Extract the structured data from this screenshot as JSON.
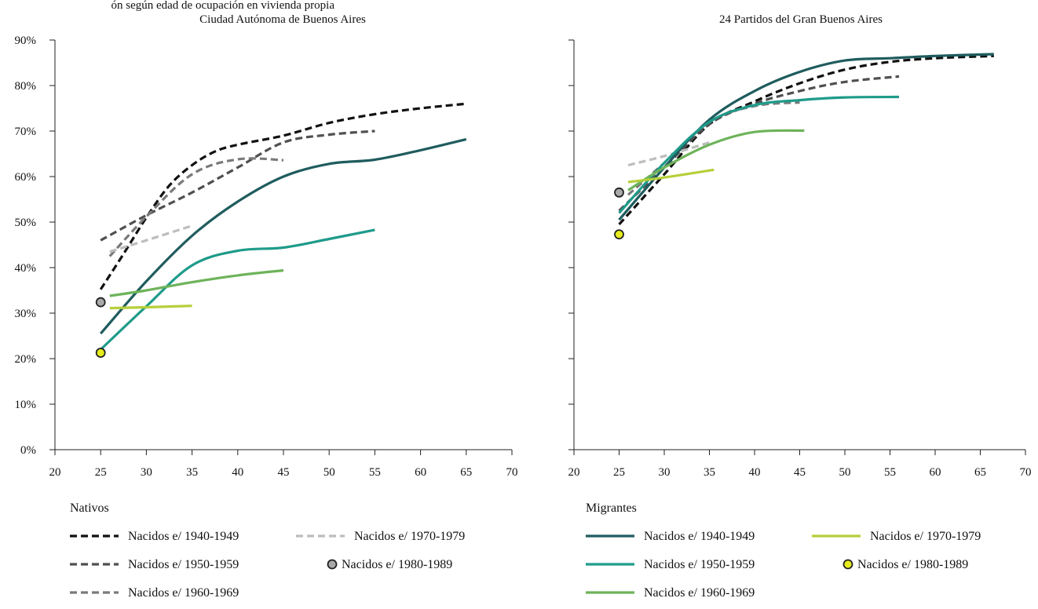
{
  "page_title_partial": "ón según edad de ocupación en vivienda propia",
  "colors": {
    "nacido_1940": "#111111",
    "nacido_1950": "#505050",
    "nacido_1960": "#7a7a7a",
    "nacido_1970": "#bdbdbd",
    "nacido_1980_fill": "#a9a9a9",
    "mig_1940": "#1f5c5e",
    "mig_1950": "#1f9b8a",
    "mig_1960": "#6db35a",
    "mig_1970": "#b6cf3a",
    "mig_1980_fill": "#e6ec1d"
  },
  "chart_data": [
    {
      "type": "line",
      "title": "Ciudad Autónoma de Buenos Aires",
      "xlabel": "",
      "ylabel": "",
      "xlim": [
        20,
        70
      ],
      "ylim": [
        0,
        90
      ],
      "x_ticks": [
        "20",
        "25",
        "30",
        "35",
        "40",
        "45",
        "50",
        "55",
        "60",
        "65",
        "70"
      ],
      "y_ticks": [
        "0%",
        "10%",
        "20%",
        "30%",
        "40%",
        "50%",
        "60%",
        "70%",
        "80%",
        "90%"
      ],
      "grid": false,
      "series": [
        {
          "name": "Nacidos e/ 1940-1949",
          "group": "Nativos",
          "color_key": "nacido_1940",
          "dash": true,
          "points": [
            [
              25,
              35.2
            ],
            [
              27.5,
              43
            ],
            [
              30,
              51
            ],
            [
              32.5,
              58
            ],
            [
              35,
              62.5
            ],
            [
              37.5,
              65.5
            ],
            [
              40,
              67
            ],
            [
              45,
              69
            ],
            [
              50,
              71.8
            ],
            [
              55,
              73.7
            ],
            [
              60,
              75
            ],
            [
              65,
              76
            ]
          ]
        },
        {
          "name": "Nacidos e/ 1950-1959",
          "group": "Nativos",
          "color_key": "nacido_1950",
          "dash": true,
          "points": [
            [
              25,
              46
            ],
            [
              30,
              51.5
            ],
            [
              35,
              56.5
            ],
            [
              40,
              62
            ],
            [
              45,
              67.5
            ],
            [
              50,
              69.2
            ],
            [
              55,
              70
            ]
          ]
        },
        {
          "name": "Nacidos e/ 1960-1969",
          "group": "Nativos",
          "color_key": "nacido_1960",
          "dash": true,
          "points": [
            [
              26,
              42.5
            ],
            [
              30,
              51.2
            ],
            [
              35,
              60.5
            ],
            [
              40,
              63.8
            ],
            [
              45,
              63.6
            ]
          ]
        },
        {
          "name": "Nacidos e/ 1970-1979",
          "group": "Nativos",
          "color_key": "nacido_1970",
          "dash": true,
          "points": [
            [
              26,
              43.5
            ],
            [
              30,
              46
            ],
            [
              35,
              49.2
            ]
          ]
        },
        {
          "name": "Nacidos e/ 1980-1989",
          "group": "Nativos",
          "color_key": "nacido_1980_fill",
          "marker": true,
          "points": [
            [
              25,
              32.4
            ]
          ]
        },
        {
          "name": "Nacidos e/ 1940-1949",
          "group": "Migrantes",
          "color_key": "mig_1940",
          "points": [
            [
              25,
              25.5
            ],
            [
              30,
              37
            ],
            [
              35,
              47
            ],
            [
              40,
              54.5
            ],
            [
              45,
              60
            ],
            [
              50,
              62.8
            ],
            [
              55,
              63.7
            ],
            [
              60,
              65.8
            ],
            [
              65,
              68.2
            ]
          ]
        },
        {
          "name": "Nacidos e/ 1950-1959",
          "group": "Migrantes",
          "color_key": "mig_1950",
          "points": [
            [
              25,
              22
            ],
            [
              30,
              31.5
            ],
            [
              35,
              40.5
            ],
            [
              40,
              43.7
            ],
            [
              45,
              44.4
            ],
            [
              50,
              46.3
            ],
            [
              55,
              48.3
            ]
          ]
        },
        {
          "name": "Nacidos e/ 1960-1969",
          "group": "Migrantes",
          "color_key": "mig_1960",
          "points": [
            [
              26,
              33.8
            ],
            [
              30,
              35
            ],
            [
              35,
              36.8
            ],
            [
              40,
              38.3
            ],
            [
              45,
              39.4
            ]
          ]
        },
        {
          "name": "Nacidos e/ 1970-1979",
          "group": "Migrantes",
          "color_key": "mig_1970",
          "points": [
            [
              26,
              31.1
            ],
            [
              30,
              31.3
            ],
            [
              35,
              31.6
            ]
          ]
        },
        {
          "name": "Nacidos e/ 1980-1989",
          "group": "Migrantes",
          "color_key": "mig_1980_fill",
          "marker": true,
          "points": [
            [
              25,
              21.3
            ]
          ]
        }
      ]
    },
    {
      "type": "line",
      "title": "24 Partidos del Gran Buenos Aires",
      "xlabel": "",
      "ylabel": "",
      "xlim": [
        20,
        70
      ],
      "ylim": [
        0,
        90
      ],
      "x_ticks": [
        "20",
        "25",
        "30",
        "35",
        "40",
        "45",
        "50",
        "55",
        "60",
        "65",
        "70"
      ],
      "y_ticks": [
        "0%",
        "10%",
        "20%",
        "30%",
        "40%",
        "50%",
        "60%",
        "70%",
        "80%",
        "90%"
      ],
      "grid": false,
      "series": [
        {
          "name": "Nacidos e/ 1940-1949",
          "group": "Nativos",
          "color_key": "nacido_1940",
          "dash": true,
          "points": [
            [
              25,
              49.5
            ],
            [
              30,
              60.5
            ],
            [
              35,
              71.5
            ],
            [
              40,
              76.5
            ],
            [
              45,
              80.5
            ],
            [
              50,
              83.5
            ],
            [
              55,
              85.2
            ],
            [
              60,
              86
            ],
            [
              66.5,
              86.5
            ]
          ]
        },
        {
          "name": "Nacidos e/ 1950-1959",
          "group": "Nativos",
          "color_key": "nacido_1950",
          "dash": true,
          "points": [
            [
              25,
              52.5
            ],
            [
              30,
              62
            ],
            [
              35,
              71.5
            ],
            [
              40,
              76
            ],
            [
              45,
              78.8
            ],
            [
              50,
              80.8
            ],
            [
              56,
              82
            ]
          ]
        },
        {
          "name": "Nacidos e/ 1960-1969",
          "group": "Nativos",
          "color_key": "nacido_1960",
          "dash": true,
          "points": [
            [
              26,
              56
            ],
            [
              30,
              63
            ],
            [
              35,
              72
            ],
            [
              40,
              75.5
            ],
            [
              45,
              76.3
            ]
          ]
        },
        {
          "name": "Nacidos e/ 1970-1979",
          "group": "Nativos",
          "color_key": "nacido_1970",
          "dash": true,
          "points": [
            [
              26,
              62.5
            ],
            [
              30,
              64.5
            ],
            [
              35,
              67.5
            ]
          ]
        },
        {
          "name": "Nacidos e/ 1980-1989",
          "group": "Nativos",
          "color_key": "nacido_1980_fill",
          "marker": true,
          "points": [
            [
              25,
              56.5
            ]
          ]
        },
        {
          "name": "Nacidos e/ 1940-1949",
          "group": "Migrantes",
          "color_key": "mig_1940",
          "points": [
            [
              25,
              50.5
            ],
            [
              30,
              62
            ],
            [
              35,
              72.5
            ],
            [
              40,
              78.8
            ],
            [
              45,
              83
            ],
            [
              50,
              85.5
            ],
            [
              55,
              86
            ],
            [
              60,
              86.5
            ],
            [
              66.5,
              86.9
            ]
          ]
        },
        {
          "name": "Nacidos e/ 1950-1959",
          "group": "Migrantes",
          "color_key": "mig_1950",
          "points": [
            [
              25,
              52
            ],
            [
              30,
              63
            ],
            [
              35,
              72
            ],
            [
              40,
              75.7
            ],
            [
              45,
              76.8
            ],
            [
              50,
              77.4
            ],
            [
              56,
              77.5
            ]
          ]
        },
        {
          "name": "Nacidos e/ 1960-1969",
          "group": "Migrantes",
          "color_key": "mig_1960",
          "points": [
            [
              26,
              57
            ],
            [
              30,
              62
            ],
            [
              35,
              67
            ],
            [
              40,
              69.8
            ],
            [
              45.5,
              70.1
            ]
          ]
        },
        {
          "name": "Nacidos e/ 1970-1979",
          "group": "Migrantes",
          "color_key": "mig_1970",
          "points": [
            [
              26,
              58.8
            ],
            [
              30,
              59.8
            ],
            [
              35.5,
              61.5
            ]
          ]
        },
        {
          "name": "Nacidos e/ 1980-1989",
          "group": "Migrantes",
          "color_key": "mig_1980_fill",
          "marker": true,
          "points": [
            [
              25,
              47.3
            ]
          ]
        }
      ]
    }
  ],
  "legends": {
    "nativos": {
      "heading": "Nativos",
      "items": [
        {
          "label": "Nacidos e/ 1940-1949",
          "color_key": "nacido_1940",
          "style": "dash"
        },
        {
          "label": "Nacidos e/ 1970-1979",
          "color_key": "nacido_1970",
          "style": "dash"
        },
        {
          "label": "Nacidos e/ 1950-1959",
          "color_key": "nacido_1950",
          "style": "dash"
        },
        {
          "label": "Nacidos e/ 1980-1989",
          "color_key": "nacido_1980_fill",
          "style": "marker"
        },
        {
          "label": "Nacidos e/ 1960-1969",
          "color_key": "nacido_1960",
          "style": "dash"
        }
      ]
    },
    "migrantes": {
      "heading": "Migrantes",
      "items": [
        {
          "label": "Nacidos e/ 1940-1949",
          "color_key": "mig_1940",
          "style": "solid"
        },
        {
          "label": "Nacidos e/ 1970-1979",
          "color_key": "mig_1970",
          "style": "solid"
        },
        {
          "label": "Nacidos e/ 1950-1959",
          "color_key": "mig_1950",
          "style": "solid"
        },
        {
          "label": "Nacidos e/ 1980-1989",
          "color_key": "mig_1980_fill",
          "style": "marker"
        },
        {
          "label": "Nacidos e/ 1960-1969",
          "color_key": "mig_1960",
          "style": "solid"
        }
      ]
    }
  }
}
